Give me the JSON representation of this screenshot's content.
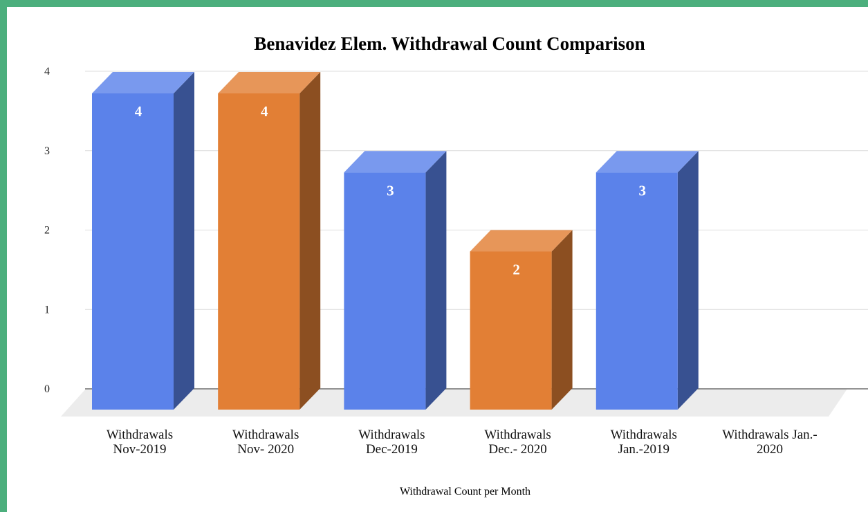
{
  "colors": {
    "frame_border": "#4caf7d",
    "series_2019": "#5b82ea",
    "series_2020": "#e27f35",
    "grid": "#dcdcdc",
    "floor": "#ececec"
  },
  "chart_data": {
    "type": "bar",
    "title": "Benavidez Elem. Withdrawal Count Comparison",
    "xlabel": "Withdrawal Count per Month",
    "ylabel": "",
    "ylim": [
      0,
      4
    ],
    "yticks": [
      "0",
      "1",
      "2",
      "3",
      "4"
    ],
    "grid": true,
    "three_d": true,
    "categories": [
      [
        "Withdrawals",
        "Nov-2019"
      ],
      [
        "Withdrawals",
        "Nov- 2020"
      ],
      [
        "Withdrawals",
        "Dec-2019"
      ],
      [
        "Withdrawals",
        "Dec.- 2020"
      ],
      [
        "Withdrawals",
        "Jan.-2019"
      ],
      [
        "Withdrawals Jan.-",
        "2020"
      ]
    ],
    "values": [
      4,
      4,
      3,
      2,
      3,
      0
    ],
    "data_labels": [
      "4",
      "4",
      "3",
      "2",
      "3",
      ""
    ],
    "bar_colors": [
      "#5b82ea",
      "#e27f35",
      "#5b82ea",
      "#e27f35",
      "#5b82ea",
      "#5b82ea"
    ]
  }
}
